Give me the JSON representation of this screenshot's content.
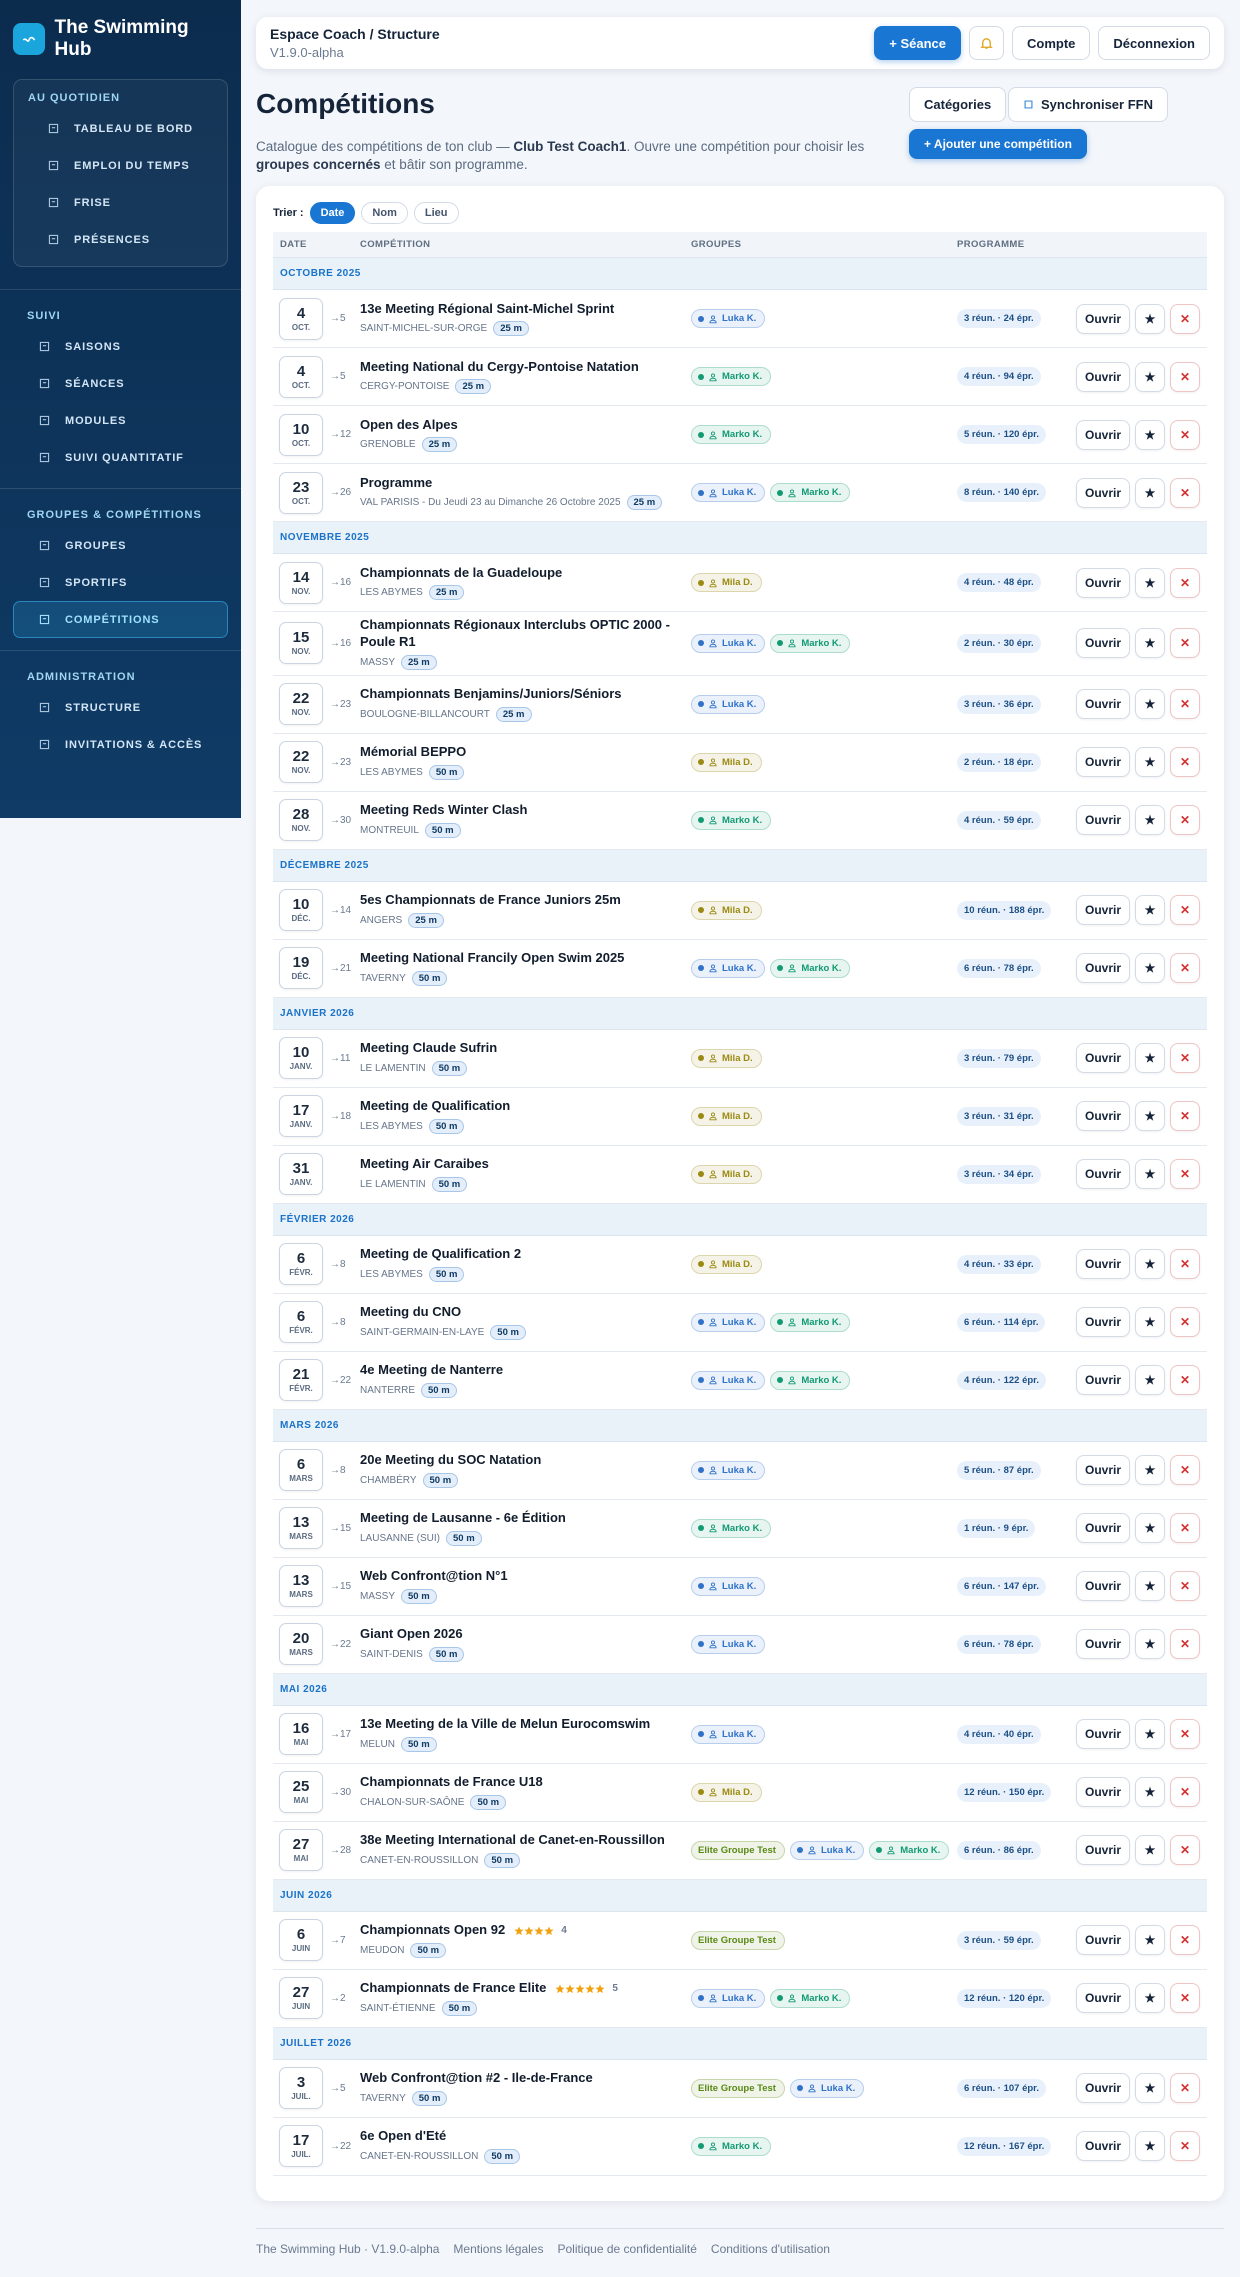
{
  "sidebar": {
    "brand": "The Swimming Hub",
    "sections": [
      {
        "title": "AU QUOTIDIEN",
        "boxed": true,
        "items": [
          {
            "label": "TABLEAU DE BORD"
          },
          {
            "label": "EMPLOI DU TEMPS"
          },
          {
            "label": "FRISE"
          },
          {
            "label": "PRÉSENCES"
          }
        ]
      },
      {
        "title": "SUIVI",
        "items": [
          {
            "label": "SAISONS"
          },
          {
            "label": "SÉANCES"
          },
          {
            "label": "MODULES"
          },
          {
            "label": "SUIVI QUANTITATIF"
          }
        ]
      },
      {
        "title": "GROUPES & COMPÉTITIONS",
        "items": [
          {
            "label": "GROUPES"
          },
          {
            "label": "SPORTIFS"
          },
          {
            "label": "COMPÉTITIONS",
            "active": true
          }
        ]
      },
      {
        "title": "ADMINISTRATION",
        "items": [
          {
            "label": "STRUCTURE"
          },
          {
            "label": "INVITATIONS & ACCÈS"
          }
        ]
      }
    ]
  },
  "header": {
    "title": "Espace Coach / Structure",
    "version": "V1.9.0-alpha",
    "new_session": "+ Séance",
    "account": "Compte",
    "logout": "Déconnexion"
  },
  "page": {
    "title": "Compétitions",
    "categories": "Catégories",
    "sync": "Synchroniser FFN",
    "add": "+ Ajouter une compétition",
    "description": [
      "Catalogue des compétitions de ton club — ",
      "Club Test Coach1",
      ". Ouvre une compétition pour choisir les ",
      "groupes concernés",
      " et bâtir son programme."
    ]
  },
  "table": {
    "sort_label": "Trier :",
    "sort_options": [
      {
        "label": "Date",
        "active": true
      },
      {
        "label": "Nom"
      },
      {
        "label": "Lieu"
      }
    ],
    "columns": [
      "DATE",
      "COMPÉTITION",
      "GROUPES",
      "PROGRAMME"
    ],
    "row_actions": [
      "Ouvrir",
      "★",
      "✕"
    ],
    "months": [
      {
        "label": "OCTOBRE 2025",
        "rows": [
          {
            "day": 4,
            "month": "OCT.",
            "end": "→5",
            "name": "13e Meeting Régional Saint-Michel Sprint",
            "place": "SAINT-MICHEL-SUR-ORGE",
            "pool": "25 m",
            "groups": [
              {
                "label": "Luka K.",
                "color": "#2f72c8",
                "icon": true
              }
            ],
            "program": "3 réun. · 24 épr."
          },
          {
            "day": 4,
            "month": "OCT.",
            "end": "→5",
            "name": "Meeting National du Cergy-Pontoise Natation",
            "place": "CERGY-PONTOISE",
            "pool": "25 m",
            "groups": [
              {
                "label": "Marko K.",
                "color": "#129a72",
                "icon": true
              }
            ],
            "program": "4 réun. · 94 épr."
          },
          {
            "day": 10,
            "month": "OCT.",
            "end": "→12",
            "name": "Open des Alpes",
            "place": "GRENOBLE",
            "pool": "25 m",
            "groups": [
              {
                "label": "Marko K.",
                "color": "#129a72",
                "icon": true
              }
            ],
            "program": "5 réun. · 120 épr."
          },
          {
            "day": 23,
            "month": "OCT.",
            "end": "→26",
            "name": "Programme",
            "place": "VAL PARISIS - Du Jeudi 23 au Dimanche 26 Octobre 2025",
            "pool": "25 m",
            "groups": [
              {
                "label": "Luka K.",
                "color": "#2f72c8",
                "icon": true
              },
              {
                "label": "Marko K.",
                "color": "#129a72",
                "icon": true
              }
            ],
            "program": "8 réun. · 140 épr."
          }
        ]
      },
      {
        "label": "NOVEMBRE 2025",
        "rows": [
          {
            "day": 14,
            "month": "NOV.",
            "end": "→16",
            "name": "Championnats de la Guadeloupe",
            "place": "LES ABYMES",
            "pool": "25 m",
            "groups": [
              {
                "label": "Mila D.",
                "color": "#9a8a12",
                "icon": true
              }
            ],
            "program": "4 réun. · 48 épr."
          },
          {
            "day": 15,
            "month": "NOV.",
            "end": "→16",
            "name": "Championnats Régionaux Interclubs OPTIC 2000 - Poule R1",
            "place": "MASSY",
            "pool": "25 m",
            "groups": [
              {
                "label": "Luka K.",
                "color": "#2f72c8",
                "icon": true
              },
              {
                "label": "Marko K.",
                "color": "#129a72",
                "icon": true
              }
            ],
            "program": "2 réun. · 30 épr."
          },
          {
            "day": 22,
            "month": "NOV.",
            "end": "→23",
            "name": "Championnats Benjamins/Juniors/Séniors",
            "place": "BOULOGNE-BILLANCOURT",
            "pool": "25 m",
            "groups": [
              {
                "label": "Luka K.",
                "color": "#2f72c8",
                "icon": true
              }
            ],
            "program": "3 réun. · 36 épr."
          },
          {
            "day": 22,
            "month": "NOV.",
            "end": "→23",
            "name": "Mémorial BEPPO",
            "place": "LES ABYMES",
            "pool": "50 m",
            "groups": [
              {
                "label": "Mila D.",
                "color": "#9a8a12",
                "icon": true
              }
            ],
            "program": "2 réun. · 18 épr."
          },
          {
            "day": 28,
            "month": "NOV.",
            "end": "→30",
            "name": "Meeting Reds Winter Clash",
            "place": "MONTREUIL",
            "pool": "50 m",
            "groups": [
              {
                "label": "Marko K.",
                "color": "#129a72",
                "icon": true
              }
            ],
            "program": "4 réun. · 59 épr."
          }
        ]
      },
      {
        "label": "DÉCEMBRE 2025",
        "rows": [
          {
            "day": 10,
            "month": "DÉC.",
            "end": "→14",
            "name": "5es Championnats de France Juniors 25m",
            "place": "ANGERS",
            "pool": "25 m",
            "groups": [
              {
                "label": "Mila D.",
                "color": "#9a8a12",
                "icon": true
              }
            ],
            "program": "10 réun. · 188 épr."
          },
          {
            "day": 19,
            "month": "DÉC.",
            "end": "→21",
            "name": "Meeting National Francily Open Swim 2025",
            "place": "TAVERNY",
            "pool": "50 m",
            "groups": [
              {
                "label": "Luka K.",
                "color": "#2f72c8",
                "icon": true
              },
              {
                "label": "Marko K.",
                "color": "#129a72",
                "icon": true
              }
            ],
            "program": "6 réun. · 78 épr."
          }
        ]
      },
      {
        "label": "JANVIER 2026",
        "rows": [
          {
            "day": 10,
            "month": "JANV.",
            "end": "→11",
            "name": "Meeting Claude Sufrin",
            "place": "LE LAMENTIN",
            "pool": "50 m",
            "groups": [
              {
                "label": "Mila D.",
                "color": "#9a8a12",
                "icon": true
              }
            ],
            "program": "3 réun. · 79 épr."
          },
          {
            "day": 17,
            "month": "JANV.",
            "end": "→18",
            "name": "Meeting de Qualification",
            "place": "LES ABYMES",
            "pool": "50 m",
            "groups": [
              {
                "label": "Mila D.",
                "color": "#9a8a12",
                "icon": true
              }
            ],
            "program": "3 réun. · 31 épr."
          },
          {
            "day": 31,
            "month": "JANV.",
            "name": "Meeting Air Caraibes",
            "place": "LE LAMENTIN",
            "pool": "50 m",
            "groups": [
              {
                "label": "Mila D.",
                "color": "#9a8a12",
                "icon": true
              }
            ],
            "program": "3 réun. · 34 épr."
          }
        ]
      },
      {
        "label": "FÉVRIER 2026",
        "rows": [
          {
            "day": 6,
            "month": "FÉVR.",
            "end": "→8",
            "name": "Meeting de Qualification 2",
            "place": "LES ABYMES",
            "pool": "50 m",
            "groups": [
              {
                "label": "Mila D.",
                "color": "#9a8a12",
                "icon": true
              }
            ],
            "program": "4 réun. · 33 épr."
          },
          {
            "day": 6,
            "month": "FÉVR.",
            "end": "→8",
            "name": "Meeting du CNO",
            "place": "SAINT-GERMAIN-EN-LAYE",
            "pool": "50 m",
            "groups": [
              {
                "label": "Luka K.",
                "color": "#2f72c8",
                "icon": true
              },
              {
                "label": "Marko K.",
                "color": "#129a72",
                "icon": true
              }
            ],
            "program": "6 réun. · 114 épr."
          },
          {
            "day": 21,
            "month": "FÉVR.",
            "end": "→22",
            "name": "4e Meeting de Nanterre",
            "place": "NANTERRE",
            "pool": "50 m",
            "groups": [
              {
                "label": "Luka K.",
                "color": "#2f72c8",
                "icon": true
              },
              {
                "label": "Marko K.",
                "color": "#129a72",
                "icon": true
              }
            ],
            "program": "4 réun. · 122 épr."
          }
        ]
      },
      {
        "label": "MARS 2026",
        "rows": [
          {
            "day": 6,
            "month": "MARS",
            "end": "→8",
            "name": "20e Meeting du SOC Natation",
            "place": "CHAMBÉRY",
            "pool": "50 m",
            "groups": [
              {
                "label": "Luka K.",
                "color": "#2f72c8",
                "icon": true
              }
            ],
            "program": "5 réun. · 87 épr."
          },
          {
            "day": 13,
            "month": "MARS",
            "end": "→15",
            "name": "Meeting de Lausanne - 6e Édition",
            "place": "LAUSANNE (SUI)",
            "pool": "50 m",
            "groups": [
              {
                "label": "Marko K.",
                "color": "#129a72",
                "icon": true
              }
            ],
            "program": "1 réun. · 9 épr."
          },
          {
            "day": 13,
            "month": "MARS",
            "end": "→15",
            "name": "Web Confront@tion N°1",
            "place": "MASSY",
            "pool": "50 m",
            "groups": [
              {
                "label": "Luka K.",
                "color": "#2f72c8",
                "icon": true
              }
            ],
            "program": "6 réun. · 147 épr."
          },
          {
            "day": 20,
            "month": "MARS",
            "end": "→22",
            "name": "Giant Open 2026",
            "place": "SAINT-DENIS",
            "pool": "50 m",
            "groups": [
              {
                "label": "Luka K.",
                "color": "#2f72c8",
                "icon": true
              }
            ],
            "program": "6 réun. · 78 épr."
          }
        ]
      },
      {
        "label": "MAI 2026",
        "rows": [
          {
            "day": 16,
            "month": "MAI",
            "end": "→17",
            "name": "13e Meeting de la Ville de Melun Eurocomswim",
            "place": "MELUN",
            "pool": "50 m",
            "groups": [
              {
                "label": "Luka K.",
                "color": "#2f72c8",
                "icon": true
              }
            ],
            "program": "4 réun. · 40 épr."
          },
          {
            "day": 25,
            "month": "MAI",
            "end": "→30",
            "name": "Championnats de France U18",
            "place": "CHALON-SUR-SAÔNE",
            "pool": "50 m",
            "groups": [
              {
                "label": "Mila D.",
                "color": "#9a8a12",
                "icon": true
              }
            ],
            "program": "12 réun. · 150 épr."
          },
          {
            "day": 27,
            "month": "MAI",
            "end": "→28",
            "name": "38e Meeting International de Canet-en-Roussillon",
            "place": "CANET-EN-ROUSSILLON",
            "pool": "50 m",
            "groups": [
              {
                "label": "Elite Groupe Test",
                "color": "#5a8a16",
                "icon": false
              },
              {
                "label": "Luka K.",
                "color": "#2f72c8",
                "icon": true
              },
              {
                "label": "Marko K.",
                "color": "#129a72",
                "icon": true
              }
            ],
            "program": "6 réun. · 86 épr."
          }
        ]
      },
      {
        "label": "JUIN 2026",
        "rows": [
          {
            "day": 6,
            "month": "JUIN",
            "end": "→7",
            "name": "Championnats Open 92",
            "rating": 4,
            "place": "MEUDON",
            "pool": "50 m",
            "groups": [
              {
                "label": "Elite Groupe Test",
                "color": "#5a8a16",
                "icon": false
              }
            ],
            "program": "3 réun. · 59 épr."
          },
          {
            "day": 27,
            "month": "JUIN",
            "end": "→2",
            "name": "Championnats de France Elite",
            "rating": 5,
            "place": "SAINT-ÉTIENNE",
            "pool": "50 m",
            "groups": [
              {
                "label": "Luka K.",
                "color": "#2f72c8",
                "icon": true
              },
              {
                "label": "Marko K.",
                "color": "#129a72",
                "icon": true
              }
            ],
            "program": "12 réun. · 120 épr."
          }
        ]
      },
      {
        "label": "JUILLET 2026",
        "rows": [
          {
            "day": 3,
            "month": "JUIL.",
            "end": "→5",
            "name": "Web Confront@tion #2 - Ile-de-France",
            "place": "TAVERNY",
            "pool": "50 m",
            "groups": [
              {
                "label": "Elite Groupe Test",
                "color": "#5a8a16",
                "icon": false
              },
              {
                "label": "Luka K.",
                "color": "#2f72c8",
                "icon": true
              }
            ],
            "program": "6 réun. · 107 épr."
          },
          {
            "day": 17,
            "month": "JUIL.",
            "end": "→22",
            "name": "6e Open d'Eté",
            "place": "CANET-EN-ROUSSILLON",
            "pool": "50 m",
            "groups": [
              {
                "label": "Marko K.",
                "color": "#129a72",
                "icon": true
              }
            ],
            "program": "12 réun. · 167 épr."
          }
        ]
      }
    ]
  },
  "footer": {
    "links": [
      "The Swimming Hub · V1.9.0-alpha",
      "Mentions légales",
      "Politique de confidentialité",
      "Conditions d'utilisation"
    ]
  }
}
